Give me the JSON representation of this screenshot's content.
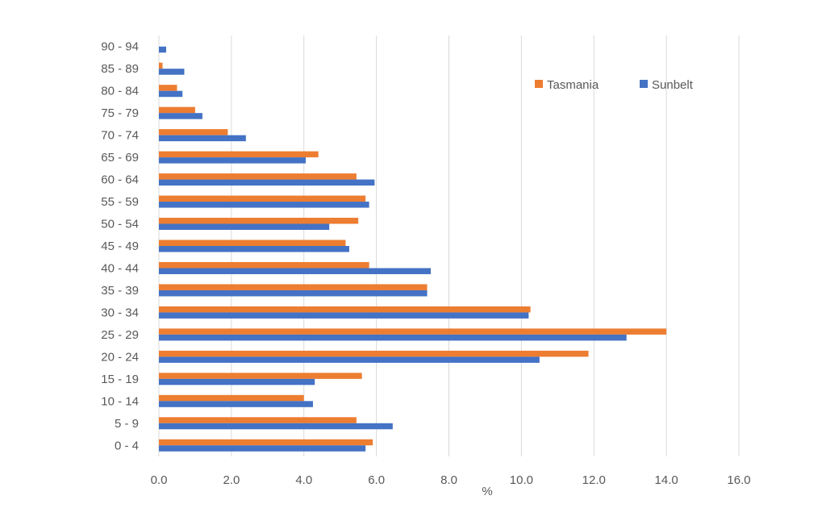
{
  "chart_data": {
    "type": "bar",
    "orientation": "horizontal",
    "categories": [
      "0 - 4",
      "5 - 9",
      "10 - 14",
      "15 - 19",
      "20 - 24",
      "25 - 29",
      "30 - 34",
      "35 - 39",
      "40 - 44",
      "45 - 49",
      "50 - 54",
      "55 - 59",
      "60 - 64",
      "65 - 69",
      "70 - 74",
      "75 - 79",
      "80 - 84",
      "85 - 89",
      "90 - 94"
    ],
    "series": [
      {
        "name": "Tasmania",
        "color": "#ed7d31",
        "values": [
          5.9,
          5.45,
          4.0,
          5.6,
          11.85,
          14.0,
          10.25,
          7.4,
          5.8,
          5.15,
          5.5,
          5.7,
          5.45,
          4.4,
          1.9,
          1.0,
          0.5,
          0.1,
          0.0
        ]
      },
      {
        "name": "Sunbelt",
        "color": "#4472c4",
        "values": [
          5.7,
          6.45,
          4.25,
          4.3,
          10.5,
          12.9,
          10.2,
          7.4,
          7.5,
          5.25,
          4.7,
          5.8,
          5.95,
          4.05,
          2.4,
          1.2,
          0.65,
          0.7,
          0.2
        ]
      }
    ],
    "xlabel": "%",
    "xlim": [
      0,
      16
    ],
    "xticks": [
      "0.0",
      "2.0",
      "4.0",
      "6.0",
      "8.0",
      "10.0",
      "12.0",
      "14.0",
      "16.0"
    ],
    "grid": "vertical",
    "legend": "top-right"
  }
}
